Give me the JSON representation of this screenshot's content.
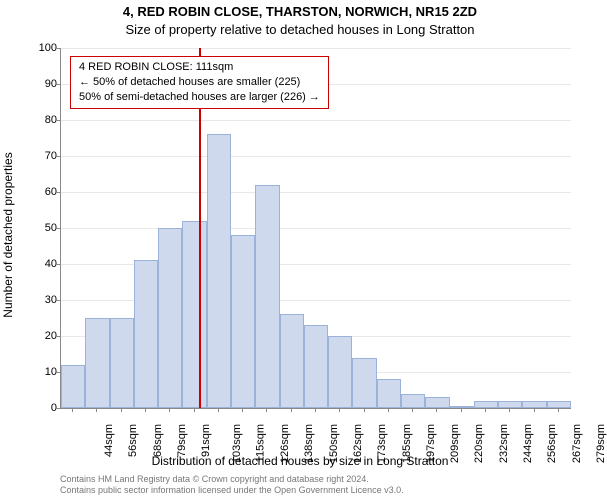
{
  "title": {
    "line1": "4, RED ROBIN CLOSE, THARSTON, NORWICH, NR15 2ZD",
    "line2": "Size of property relative to detached houses in Long Stratton",
    "fontsize": 13
  },
  "chart": {
    "type": "histogram",
    "bar_fill": "#cfd9ed",
    "bar_border": "#9db2d8",
    "marker_color": "#cc0000",
    "grid_color": "#e8e8e8",
    "axis_color": "#888888",
    "background_color": "#ffffff",
    "ylim": [
      0,
      100
    ],
    "ytick_step": 10,
    "y_ticks": [
      0,
      10,
      20,
      30,
      40,
      50,
      60,
      70,
      80,
      90,
      100
    ],
    "x_labels": [
      "44sqm",
      "56sqm",
      "68sqm",
      "79sqm",
      "91sqm",
      "103sqm",
      "115sqm",
      "126sqm",
      "138sqm",
      "150sqm",
      "162sqm",
      "173sqm",
      "185sqm",
      "197sqm",
      "209sqm",
      "220sqm",
      "232sqm",
      "244sqm",
      "256sqm",
      "267sqm",
      "279sqm"
    ],
    "values": [
      12,
      25,
      25,
      41,
      50,
      52,
      76,
      48,
      62,
      26,
      23,
      20,
      14,
      8,
      4,
      3,
      0,
      2,
      2,
      2,
      2
    ],
    "marker_value": 111,
    "x_min": 44,
    "x_step_approx": 11.75,
    "label_fontsize": 11
  },
  "y_axis": {
    "label": "Number of detached properties"
  },
  "x_axis": {
    "label": "Distribution of detached houses by size in Long Stratton"
  },
  "annotation": {
    "line1": "4 RED ROBIN CLOSE: 111sqm",
    "line2": "← 50% of detached houses are smaller (225)",
    "line3": "50% of semi-detached houses are larger (226) →",
    "border_color": "#cc0000"
  },
  "footer": {
    "line1": "Contains HM Land Registry data © Crown copyright and database right 2024.",
    "line2": "Contains public sector information licensed under the Open Government Licence v3.0.",
    "color": "#777777",
    "fontsize": 9
  }
}
